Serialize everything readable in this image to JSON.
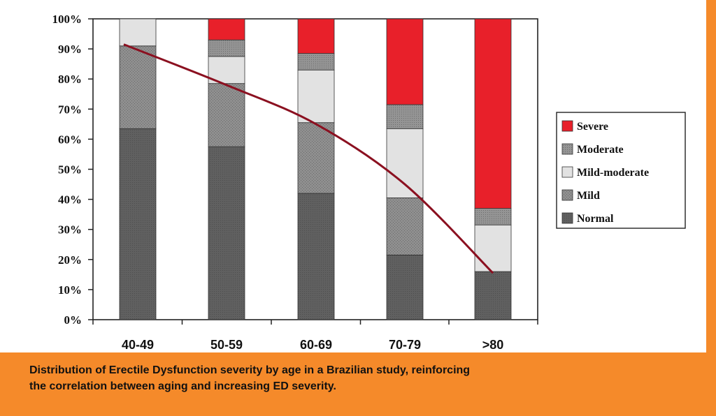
{
  "caption": {
    "line1": "Distribution of Erectile Dysfunction severity by age in a Brazilian study, reinforcing",
    "line2": "the correlation between aging and increasing ED severity."
  },
  "colors": {
    "Severe": "#e8202a",
    "Moderate": "#8f8f8f",
    "Mild-moderate": "#e2e2e2",
    "Mild": "#8a8a8a",
    "Normal": "#5f5f5f",
    "trend": "#8b1020",
    "panel_bg": "#ffffff",
    "page_bg": "#f58a2a"
  },
  "chart_data": {
    "type": "bar",
    "stacked": true,
    "categories": [
      "40-49",
      "50-59",
      "60-69",
      "70-79",
      ">80"
    ],
    "series": [
      {
        "name": "Normal",
        "values": [
          63.5,
          57.5,
          42,
          21.5,
          16
        ]
      },
      {
        "name": "Mild",
        "values": [
          27.5,
          21,
          23.5,
          19,
          0
        ]
      },
      {
        "name": "Mild-moderate",
        "values": [
          9,
          9,
          17.5,
          23,
          15.5
        ]
      },
      {
        "name": "Moderate",
        "values": [
          0,
          5.5,
          5.5,
          8,
          5.5
        ]
      },
      {
        "name": "Severe",
        "values": [
          0,
          7,
          11.5,
          28.5,
          63
        ]
      }
    ],
    "legend_order": [
      "Severe",
      "Moderate",
      "Mild-moderate",
      "Mild",
      "Normal"
    ],
    "trend_line": {
      "x": [
        "40-49",
        "50-59",
        "60-69",
        "70-79",
        ">80"
      ],
      "y": [
        91.5,
        78,
        65,
        45,
        15.5
      ]
    },
    "yticks": [
      "0%",
      "10%",
      "20%",
      "30%",
      "40%",
      "50%",
      "60%",
      "70%",
      "80%",
      "90%",
      "100%"
    ],
    "ylim": [
      0,
      100
    ],
    "xlabel": "",
    "ylabel": "",
    "title": "",
    "grid": false,
    "legend_position": "right"
  }
}
